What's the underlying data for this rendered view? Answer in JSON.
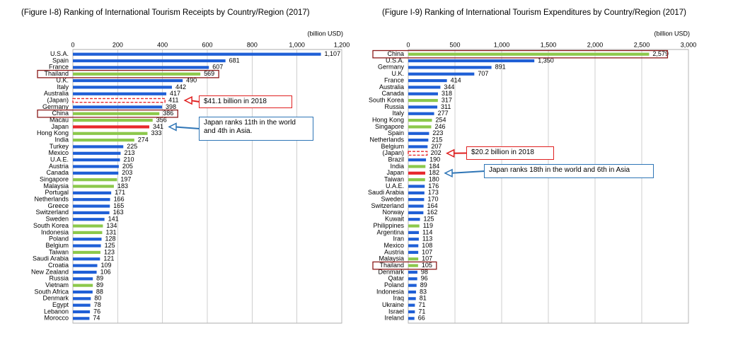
{
  "chart_data": [
    {
      "type": "barh",
      "title": "(Figure I-8) Ranking of International Tourism Receipts by Country/Region (2017)",
      "unit": "(billion USD)",
      "categories": [
        "U.S.A.",
        "Spain",
        "France",
        "Thailand",
        "U.K.",
        "Italy",
        "Australia",
        "(Japan)",
        "Germany",
        "China",
        "Macau",
        "Japan",
        "Hong Kong",
        "India",
        "Turkey",
        "Mexico",
        "U.A.E.",
        "Austria",
        "Canada",
        "Singapore",
        "Malaysia",
        "Portugal",
        "Netherlands",
        "Greece",
        "Switzerland",
        "Sweden",
        "South Korea",
        "Indonesia",
        "Poland",
        "Belgium",
        "Taiwan",
        "Saudi Arabia",
        "Croatia",
        "New Zealand",
        "Russia",
        "Vietnam",
        "South Africa",
        "Denmark",
        "Egypt",
        "Lebanon",
        "Morocco"
      ],
      "values": [
        1107,
        681,
        607,
        569,
        490,
        442,
        417,
        411,
        398,
        386,
        356,
        341,
        333,
        274,
        225,
        213,
        210,
        205,
        203,
        197,
        183,
        171,
        166,
        165,
        163,
        141,
        134,
        131,
        128,
        125,
        123,
        121,
        109,
        106,
        89,
        89,
        88,
        80,
        78,
        76,
        74
      ],
      "value_labels": [
        "1,107",
        "681",
        "607",
        "569",
        "490",
        "442",
        "417",
        "411",
        "398",
        "386",
        "356",
        "341",
        "333",
        "274",
        "225",
        "213",
        "210",
        "205",
        "203",
        "197",
        "183",
        "171",
        "166",
        "165",
        "163",
        "141",
        "134",
        "131",
        "128",
        "125",
        "123",
        "121",
        "109",
        "106",
        "89",
        "89",
        "88",
        "80",
        "78",
        "76",
        "74"
      ],
      "colors": [
        "#1f5fd6",
        "#1f5fd6",
        "#1f5fd6",
        "#8cc84b",
        "#1f5fd6",
        "#1f5fd6",
        "#1f5fd6",
        "#e8282c",
        "#1f5fd6",
        "#8cc84b",
        "#8cc84b",
        "#e8282c",
        "#8cc84b",
        "#8cc84b",
        "#1f5fd6",
        "#1f5fd6",
        "#1f5fd6",
        "#1f5fd6",
        "#1f5fd6",
        "#8cc84b",
        "#8cc84b",
        "#1f5fd6",
        "#1f5fd6",
        "#1f5fd6",
        "#1f5fd6",
        "#1f5fd6",
        "#8cc84b",
        "#8cc84b",
        "#1f5fd6",
        "#1f5fd6",
        "#8cc84b",
        "#1f5fd6",
        "#1f5fd6",
        "#1f5fd6",
        "#1f5fd6",
        "#8cc84b",
        "#1f5fd6",
        "#1f5fd6",
        "#1f5fd6",
        "#1f5fd6",
        "#1f5fd6"
      ],
      "dashed": [
        7
      ],
      "highlighted": [
        3,
        9
      ],
      "xlim": [
        0,
        1200
      ],
      "xticks": [
        0,
        200,
        400,
        600,
        800,
        {
          "value": 1000,
          "label": "1,000"
        },
        {
          "value": 1200,
          "label": "1,200"
        }
      ],
      "grid": true,
      "annotations": [
        {
          "text": "$41.1 billion in 2018",
          "color": "#e02020",
          "target": 7
        },
        {
          "text": "Japan ranks 11th in the world and 4th in Asia.",
          "color": "#2e75b6",
          "target": 11
        }
      ]
    },
    {
      "type": "barh",
      "title": "(Figure I-9) Ranking of International Tourism Expenditures by Country/Region (2017)",
      "unit": "(billion USD)",
      "categories": [
        "China",
        "U.S.A.",
        "Germany",
        "U.K.",
        "France",
        "Australia",
        "Canada",
        "South Korea",
        "Russia",
        "Italy",
        "Hong Kong",
        "Singapore",
        "Spain",
        "Netherlands",
        "Belgium",
        "(Japan)",
        "Brazil",
        "India",
        "Japan",
        "Taiwan",
        "U.A.E.",
        "Saudi Arabia",
        "Sweden",
        "Switzerland",
        "Norway",
        "Kuwait",
        "Philippines",
        "Argentina",
        "Iran",
        "Mexico",
        "Austria",
        "Malaysia",
        "Thailand",
        "Denmark",
        "Qatar",
        "Poland",
        "Indonesia",
        "Iraq",
        "Ukraine",
        "Israel",
        "Ireland"
      ],
      "values": [
        2579,
        1350,
        891,
        707,
        414,
        344,
        318,
        317,
        311,
        277,
        254,
        246,
        223,
        215,
        207,
        202,
        190,
        184,
        182,
        180,
        176,
        173,
        170,
        164,
        162,
        125,
        119,
        114,
        113,
        108,
        107,
        107,
        105,
        98,
        96,
        89,
        83,
        81,
        71,
        71,
        66
      ],
      "value_labels": [
        "2,579",
        "1,350",
        "891",
        "707",
        "414",
        "344",
        "318",
        "317",
        "311",
        "277",
        "254",
        "246",
        "223",
        "215",
        "207",
        "202",
        "190",
        "184",
        "182",
        "180",
        "176",
        "173",
        "170",
        "164",
        "162",
        "125",
        "119",
        "114",
        "113",
        "108",
        "107",
        "107",
        "105",
        "98",
        "96",
        "89",
        "83",
        "81",
        "71",
        "71",
        "66"
      ],
      "colors": [
        "#8cc84b",
        "#1f5fd6",
        "#1f5fd6",
        "#1f5fd6",
        "#1f5fd6",
        "#1f5fd6",
        "#1f5fd6",
        "#8cc84b",
        "#1f5fd6",
        "#1f5fd6",
        "#8cc84b",
        "#8cc84b",
        "#1f5fd6",
        "#1f5fd6",
        "#1f5fd6",
        "#e8282c",
        "#1f5fd6",
        "#8cc84b",
        "#e8282c",
        "#8cc84b",
        "#1f5fd6",
        "#1f5fd6",
        "#1f5fd6",
        "#1f5fd6",
        "#1f5fd6",
        "#1f5fd6",
        "#8cc84b",
        "#1f5fd6",
        "#1f5fd6",
        "#1f5fd6",
        "#1f5fd6",
        "#8cc84b",
        "#8cc84b",
        "#1f5fd6",
        "#1f5fd6",
        "#1f5fd6",
        "#1f5fd6",
        "#1f5fd6",
        "#1f5fd6",
        "#1f5fd6",
        "#1f5fd6"
      ],
      "dashed": [
        15
      ],
      "highlighted": [
        0,
        32
      ],
      "xlim": [
        0,
        3000
      ],
      "xticks": [
        0,
        500,
        {
          "value": 1000,
          "label": "1,000"
        },
        {
          "value": 1500,
          "label": "1,500"
        },
        {
          "value": 2000,
          "label": "2,000"
        },
        {
          "value": 2500,
          "label": "2,500"
        },
        {
          "value": 3000,
          "label": "3,000"
        }
      ],
      "grid": true,
      "annotations": [
        {
          "text": "$20.2 billion in 2018",
          "color": "#e02020",
          "target": 15
        },
        {
          "text": "Japan ranks 18th in the world and 6th in Asia",
          "color": "#2e75b6",
          "target": 18
        }
      ]
    }
  ]
}
